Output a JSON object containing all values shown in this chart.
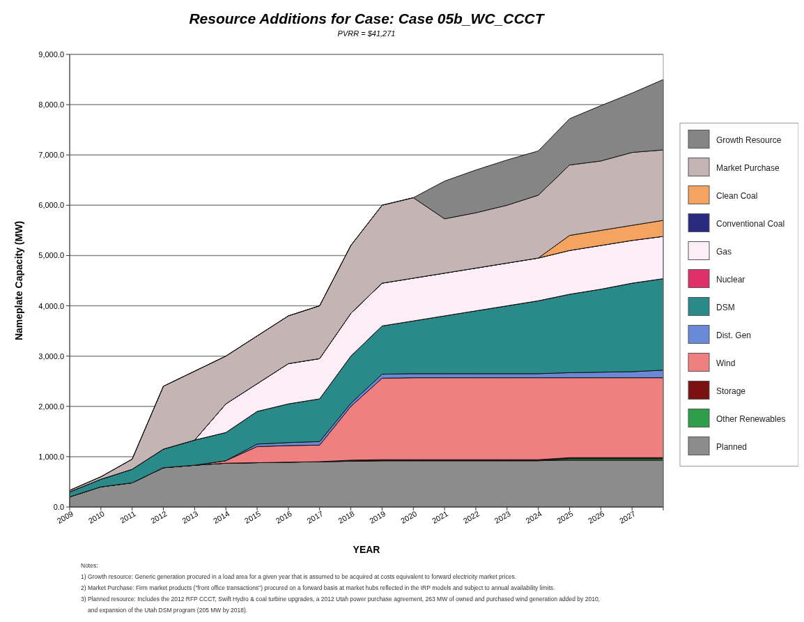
{
  "chart_data": {
    "type": "area",
    "stacked": true,
    "title": "Resource Additions for Case: Case 05b_WC_CCCT",
    "subtitle": "PVRR = $41,271",
    "xlabel": "YEAR",
    "ylabel": "Nameplate Capacity (MW)",
    "categories": [
      "2009",
      "2010",
      "2011",
      "2012",
      "2013",
      "2014",
      "2015",
      "2016",
      "2017",
      "2018",
      "2019",
      "2020",
      "2021",
      "2022",
      "2023",
      "2024",
      "2025",
      "2026",
      "2027",
      null
    ],
    "ylim": [
      0,
      9000
    ],
    "yticks": [
      {
        "value": 0,
        "label": "0.0"
      },
      {
        "value": 1000,
        "label": "1,000.0"
      },
      {
        "value": 2000,
        "label": "2,000.0"
      },
      {
        "value": 3000,
        "label": "3,000.0"
      },
      {
        "value": 4000,
        "label": "4,000.0"
      },
      {
        "value": 5000,
        "label": "5,000.0"
      },
      {
        "value": 6000,
        "label": "6,000.0"
      },
      {
        "value": 7000,
        "label": "7,000.0"
      },
      {
        "value": 8000,
        "label": "8,000.0"
      },
      {
        "value": 9000,
        "label": "9,000.0"
      }
    ],
    "grid": "y",
    "legend": "right",
    "series": [
      {
        "name": "Planned",
        "color": "#8c8c8c",
        "values": [
          200,
          400,
          480,
          780,
          830,
          870,
          880,
          890,
          900,
          910,
          920,
          920,
          920,
          920,
          920,
          920,
          930,
          930,
          930,
          930
        ]
      },
      {
        "name": "Other Renewables",
        "color": "#2e9e4a",
        "values": [
          0,
          0,
          0,
          0,
          0,
          0,
          0,
          0,
          0,
          0,
          0,
          0,
          0,
          0,
          0,
          0,
          30,
          30,
          30,
          30
        ]
      },
      {
        "name": "Storage",
        "color": "#7a1010",
        "values": [
          0,
          0,
          0,
          0,
          0,
          0,
          0,
          0,
          0,
          20,
          20,
          20,
          20,
          20,
          20,
          20,
          20,
          20,
          20,
          20
        ]
      },
      {
        "name": "Wind",
        "color": "#f08080",
        "values": [
          0,
          0,
          0,
          0,
          0,
          50,
          320,
          330,
          330,
          1070,
          1620,
          1630,
          1630,
          1630,
          1630,
          1630,
          1590,
          1590,
          1590,
          1590
        ]
      },
      {
        "name": "Dist. Gen",
        "color": "#6a8ad8",
        "values": [
          0,
          0,
          0,
          0,
          0,
          0,
          50,
          60,
          70,
          60,
          80,
          80,
          80,
          80,
          80,
          80,
          100,
          110,
          120,
          150
        ]
      },
      {
        "name": "DSM",
        "color": "#2a8a8a",
        "values": [
          100,
          150,
          270,
          370,
          500,
          560,
          650,
          770,
          850,
          940,
          960,
          1050,
          1150,
          1250,
          1350,
          1450,
          1560,
          1650,
          1760,
          1820
        ]
      },
      {
        "name": "Nuclear",
        "color": "#e0306a",
        "values": [
          null,
          null,
          null,
          null,
          null,
          null,
          null,
          null,
          null,
          null,
          null,
          null,
          null,
          null,
          null,
          null,
          null,
          null,
          null,
          null
        ]
      },
      {
        "name": "Gas",
        "color": "#fbeef6",
        "values": [
          0,
          0,
          0,
          0,
          0,
          570,
          550,
          800,
          800,
          850,
          850,
          850,
          850,
          850,
          850,
          850,
          870,
          870,
          850,
          840
        ]
      },
      {
        "name": "Conventional Coal",
        "color": "#2a2a80",
        "values": [
          null,
          null,
          null,
          null,
          null,
          null,
          null,
          null,
          null,
          null,
          null,
          null,
          null,
          null,
          null,
          null,
          null,
          null,
          null,
          null
        ]
      },
      {
        "name": "Clean Coal",
        "color": "#f4a460",
        "values": [
          0,
          0,
          0,
          0,
          0,
          0,
          0,
          0,
          0,
          0,
          0,
          0,
          0,
          0,
          0,
          0,
          300,
          300,
          300,
          320
        ]
      },
      {
        "name": "Market Purchase",
        "color": "#c4b4b4",
        "values": [
          30,
          50,
          200,
          1250,
          1370,
          950,
          950,
          950,
          1050,
          1350,
          1550,
          1600,
          1080,
          1100,
          1150,
          1250,
          1400,
          1380,
          1450,
          1400
        ]
      },
      {
        "name": "Growth Resource",
        "color": "#858585",
        "values": [
          0,
          0,
          0,
          0,
          0,
          0,
          0,
          0,
          0,
          0,
          0,
          0,
          750,
          850,
          900,
          880,
          920,
          1100,
          1180,
          1400
        ]
      }
    ],
    "annotations": [
      "Notes:",
      "1) Growth resource: Generic generation procured in a load area for a given year that is assumed to be acquired at costs equivalent to forward electricity market prices.",
      "2) Market Purchase: Firm market products (\"front office transactions\") procured on a forward basis at market hubs reflected in the IRP models and subject to annual availability limits.",
      "3) Planned resource: Includes the 2012 RFP CCCT, Swift Hydro & coal turbine upgrades, a 2012 Utah power purchase agreement, 263 MW of owned and purchased wind generation added by 2010,",
      "and expansion of the Utah DSM program (205 MW by 2018)."
    ]
  }
}
